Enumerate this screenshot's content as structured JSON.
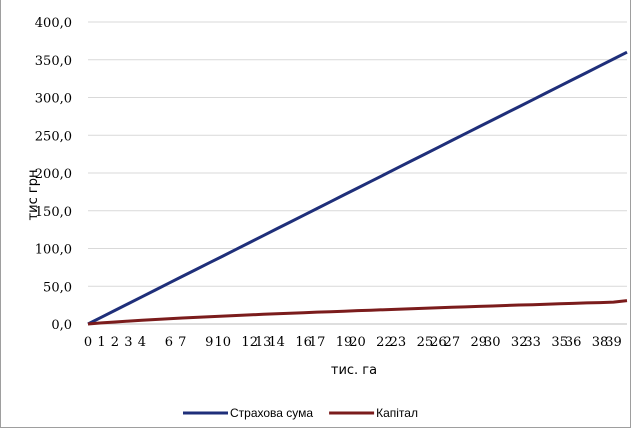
{
  "chart_data": {
    "type": "line",
    "title": "",
    "xlabel": "тис. га",
    "ylabel": "тис  грн",
    "ylim": [
      0,
      400
    ],
    "yticks": [
      "0,0",
      "50,0",
      "100,0",
      "150,0",
      "200,0",
      "250,0",
      "300,0",
      "350,0",
      "400,0"
    ],
    "categories": [
      "0",
      "1",
      "2",
      "3",
      "4",
      "5",
      "6",
      "7",
      "8",
      "9",
      "10",
      "11",
      "12",
      "13",
      "14",
      "15",
      "16",
      "17",
      "18",
      "19",
      "20",
      "21",
      "22",
      "23",
      "24",
      "25",
      "26",
      "27",
      "28",
      "29",
      "30",
      "31",
      "32",
      "33",
      "34",
      "35",
      "36",
      "37",
      "38",
      "39",
      "40"
    ],
    "x_tick_labels": [
      "0",
      "1",
      "2",
      "3",
      "4",
      "6",
      "7",
      "9",
      "10",
      "12",
      "13",
      "14",
      "16",
      "17",
      "19",
      "20",
      "22",
      "23",
      "25",
      "26",
      "27",
      "29",
      "30",
      "32",
      "33",
      "35",
      "36",
      "38",
      "39"
    ],
    "grid": true,
    "legend_position": "bottom",
    "series": [
      {
        "name": "Страхова сума",
        "color": "#1f2f7a",
        "values": [
          0,
          9,
          18,
          27,
          36,
          45,
          54,
          63,
          72,
          81,
          90,
          99,
          108,
          117,
          126,
          135,
          144,
          153,
          162,
          171,
          180,
          189,
          198,
          207,
          216,
          225,
          234,
          243,
          252,
          261,
          270,
          279,
          288,
          297,
          306,
          315,
          324,
          333,
          342,
          351,
          360
        ]
      },
      {
        "name": "Капітал",
        "color": "#7b1c1c",
        "values": [
          0,
          1.4,
          2.7,
          3.9,
          5.0,
          6.0,
          6.9,
          7.9,
          8.7,
          9.6,
          10.4,
          11.2,
          12.0,
          12.8,
          13.5,
          14.2,
          15.0,
          15.7,
          16.3,
          17.0,
          17.7,
          18.3,
          19.0,
          19.6,
          20.3,
          20.9,
          21.5,
          22.1,
          22.7,
          23.3,
          23.9,
          24.5,
          25.1,
          25.6,
          26.2,
          26.8,
          27.3,
          27.9,
          28.4,
          29.0,
          31.0
        ]
      }
    ]
  }
}
